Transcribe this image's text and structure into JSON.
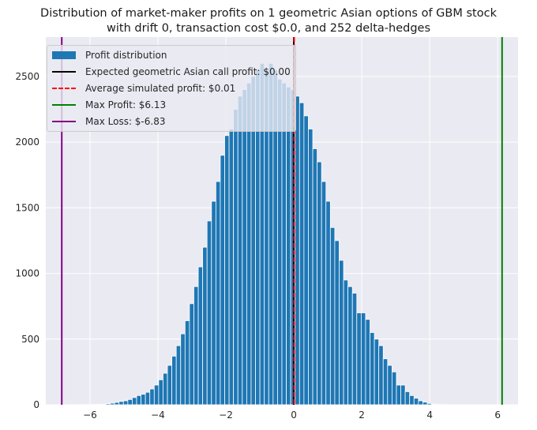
{
  "title_line1": "Distribution of market-maker profits on 1 geometric Asian options of GBM stock",
  "title_line2": "with drift 0, transaction cost $0.0, and 252 delta-hedges",
  "colors": {
    "background": "#eaeaf2",
    "bars": "#1f77b4",
    "expected": "#000000",
    "average": "#ff0000",
    "max_profit": "#008000",
    "max_loss": "#800080"
  },
  "legend": [
    {
      "label": "Profit distribution",
      "style": "patch",
      "color": "#1f77b4"
    },
    {
      "label": "Expected geometric Asian call profit: $0.00",
      "style": "solid",
      "color": "#000000"
    },
    {
      "label": "Average simulated profit: $0.01",
      "style": "dashed",
      "color": "#ff0000"
    },
    {
      "label": "Max Profit: $6.13",
      "style": "solid",
      "color": "#008000"
    },
    {
      "label": "Max Loss: $-6.83",
      "style": "solid",
      "color": "#800080"
    }
  ],
  "chart_data": {
    "type": "bar",
    "subtype": "histogram",
    "title": "Distribution of market-maker profits on 1 geometric Asian options of GBM stock with drift 0, transaction cost $0.0, and 252 delta-hedges",
    "xlabel": "",
    "ylabel": "",
    "xlim": [
      -7.3,
      6.6
    ],
    "ylim": [
      0,
      2800
    ],
    "xticks": [
      -6,
      -4,
      -2,
      0,
      2,
      4,
      6
    ],
    "xtick_labels": [
      "−6",
      "−4",
      "−2",
      "0",
      "2",
      "4",
      "6"
    ],
    "yticks": [
      0,
      500,
      1000,
      1500,
      2000,
      2500
    ],
    "ytick_labels": [
      "0",
      "500",
      "1000",
      "1500",
      "2000",
      "2500"
    ],
    "grid": true,
    "legend_position": "upper-left",
    "bin_start": -6.83,
    "bin_width": 0.1296,
    "counts": [
      1,
      0,
      1,
      0,
      1,
      1,
      1,
      2,
      3,
      5,
      8,
      12,
      18,
      25,
      30,
      40,
      55,
      70,
      80,
      95,
      120,
      150,
      190,
      240,
      300,
      370,
      450,
      540,
      640,
      770,
      900,
      1050,
      1200,
      1400,
      1550,
      1700,
      1900,
      2050,
      2100,
      2250,
      2350,
      2400,
      2450,
      2500,
      2550,
      2600,
      2550,
      2600,
      2550,
      2480,
      2450,
      2420,
      2400,
      2350,
      2300,
      2200,
      2100,
      1950,
      1850,
      1700,
      1550,
      1350,
      1250,
      1100,
      950,
      900,
      850,
      700,
      700,
      650,
      550,
      500,
      450,
      350,
      300,
      250,
      150,
      150,
      100,
      70,
      50,
      30,
      20,
      10,
      5,
      2,
      1
    ],
    "vlines": [
      {
        "name": "Expected geometric Asian call profit: $0.00",
        "x": 0.0,
        "color": "#000000",
        "style": "solid"
      },
      {
        "name": "Average simulated profit: $0.01",
        "x": 0.01,
        "color": "#ff0000",
        "style": "dashed"
      },
      {
        "name": "Max Profit: $6.13",
        "x": 6.13,
        "color": "#008000",
        "style": "solid"
      },
      {
        "name": "Max Loss: $-6.83",
        "x": -6.83,
        "color": "#800080",
        "style": "solid"
      }
    ]
  }
}
